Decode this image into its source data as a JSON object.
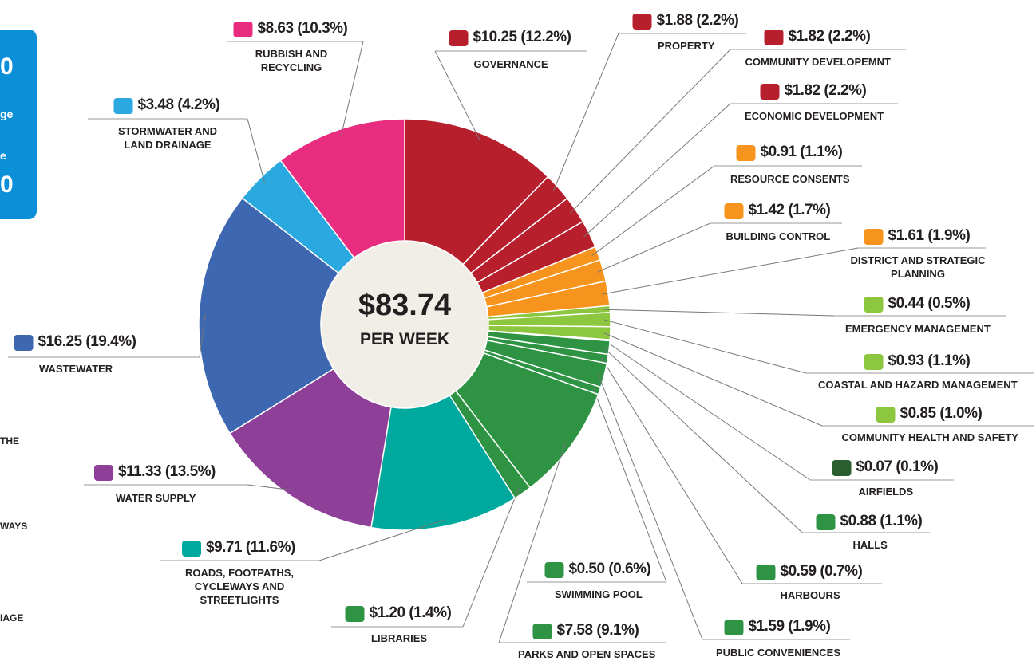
{
  "chart_data": {
    "type": "pie",
    "center_value": "$83.74",
    "center_label": "PER WEEK",
    "categories": [
      "GOVERNANCE",
      "PROPERTY",
      "COMMUNITY DEVELOPEMNT",
      "ECONOMIC DEVELOPMENT",
      "RESOURCE CONSENTS",
      "BUILDING CONTROL",
      "DISTRICT AND STRATEGIC PLANNING",
      "EMERGENCY MANAGEMENT",
      "COASTAL AND HAZARD MANAGEMENT",
      "COMMUNITY HEALTH AND SAFETY",
      "AIRFIELDS",
      "HALLS",
      "HARBOURS",
      "PUBLIC CONVENIENCES",
      "SWIMMING POOL",
      "PARKS AND OPEN SPACES",
      "LIBRARIES",
      "ROADS, FOOTPATHS, CYCLEWAYS AND STREETLIGHTS",
      "WATER SUPPLY",
      "WASTEWATER",
      "STORMWATER AND LAND DRAINAGE",
      "RUBBISH AND RECYCLING"
    ],
    "values": [
      10.25,
      1.88,
      1.82,
      1.82,
      0.91,
      1.42,
      1.61,
      0.44,
      0.93,
      0.85,
      0.07,
      0.88,
      0.59,
      1.59,
      0.5,
      7.58,
      1.2,
      9.71,
      11.33,
      16.25,
      3.48,
      8.63
    ],
    "value_labels": [
      "$10.25 (12.2%)",
      "$1.88 (2.2%)",
      "$1.82 (2.2%)",
      "$1.82 (2.2%)",
      "$0.91 (1.1%)",
      "$1.42 (1.7%)",
      "$1.61 (1.9%)",
      "$0.44 (0.5%)",
      "$0.93 (1.1%)",
      "$0.85 (1.0%)",
      "$0.07 (0.1%)",
      "$0.88 (1.1%)",
      "$0.59 (0.7%)",
      "$1.59 (1.9%)",
      "$0.50 (0.6%)",
      "$7.58 (9.1%)",
      "$1.20 (1.4%)",
      "$9.71 (11.6%)",
      "$11.33 (13.5%)",
      "$16.25 (19.4%)",
      "$3.48 (4.2%)",
      "$8.63 (10.3%)"
    ],
    "colors": [
      "#b71f2c",
      "#b71f2c",
      "#b71f2c",
      "#b71f2c",
      "#f7941d",
      "#f7941d",
      "#f7941d",
      "#8dc63f",
      "#8dc63f",
      "#8dc63f",
      "#2b5e2e",
      "#2e9444",
      "#2e9444",
      "#2e9444",
      "#2e9444",
      "#2e9444",
      "#2e9444",
      "#00a99d",
      "#8e3f98",
      "#3d67b1",
      "#2aa8e0",
      "#e82c7f"
    ]
  },
  "sidebar": {
    "box_texts": [
      "0",
      "ge",
      "e",
      "0"
    ],
    "edge_texts": [
      "THE",
      "WAYS",
      "IAGE"
    ]
  }
}
